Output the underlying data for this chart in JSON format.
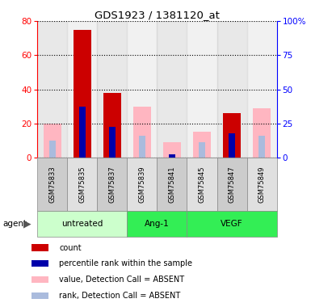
{
  "title": "GDS1923 / 1381120_at",
  "samples": [
    "GSM75833",
    "GSM75835",
    "GSM75837",
    "GSM75839",
    "GSM75841",
    "GSM75845",
    "GSM75847",
    "GSM75849"
  ],
  "red_bars": [
    0,
    75,
    38,
    0,
    0,
    0,
    26,
    0
  ],
  "pink_bars": [
    20,
    0,
    0,
    30,
    9,
    15,
    0,
    29
  ],
  "blue_bars": [
    0,
    30,
    18,
    0,
    2,
    0,
    14,
    0
  ],
  "lblue_bars": [
    10,
    0,
    0,
    13,
    2,
    9,
    0,
    13
  ],
  "ylim_left": [
    0,
    80
  ],
  "ylim_right": [
    0,
    100
  ],
  "yticks_left": [
    0,
    20,
    40,
    60,
    80
  ],
  "yticks_right": [
    0,
    25,
    50,
    75,
    100
  ],
  "yticklabels_right": [
    "0",
    "25",
    "50",
    "75",
    "100%"
  ],
  "bar_width": 0.6,
  "narrow_bar_ratio": 0.38,
  "colors": {
    "red": "#CC0000",
    "pink": "#FFB6C1",
    "blue": "#0000AA",
    "lblue": "#AABBDD",
    "col_even": "#CCCCCC",
    "col_odd": "#E0E0E0"
  },
  "group_specs": [
    {
      "label": "untreated",
      "start": 0,
      "end": 2,
      "color": "#CCFFCC"
    },
    {
      "label": "Ang-1",
      "start": 3,
      "end": 4,
      "color": "#33EE55"
    },
    {
      "label": "VEGF",
      "start": 5,
      "end": 7,
      "color": "#33EE55"
    }
  ],
  "legend": [
    {
      "color": "#CC0000",
      "label": "count"
    },
    {
      "color": "#0000AA",
      "label": "percentile rank within the sample"
    },
    {
      "color": "#FFB6C1",
      "label": "value, Detection Call = ABSENT"
    },
    {
      "color": "#AABBDD",
      "label": "rank, Detection Call = ABSENT"
    }
  ]
}
